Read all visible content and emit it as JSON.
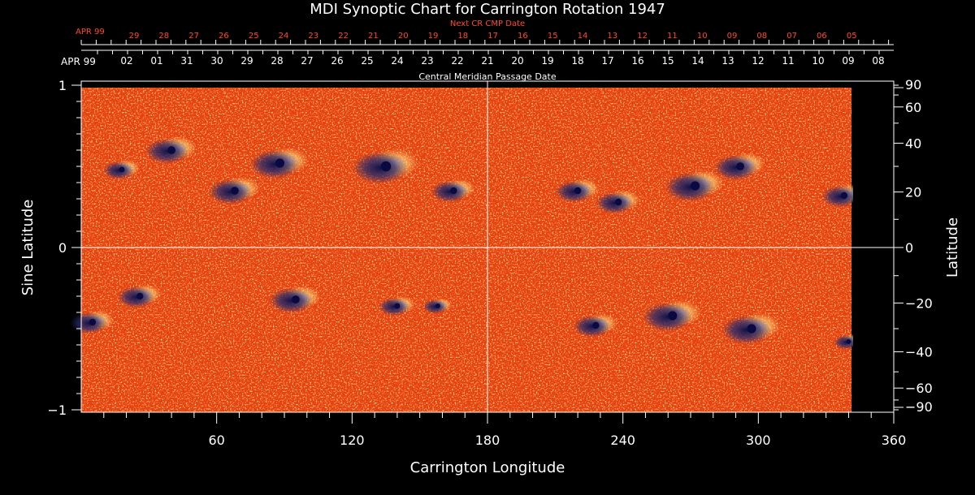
{
  "colors": {
    "background": "#000000",
    "map_base": "#e8400c",
    "map_light": "#ffd060",
    "map_dark": "#1a1a5a",
    "axis": "#ffffff",
    "top_axis": "#ff4a2a"
  },
  "chart_data": {
    "type": "heatmap",
    "title": "MDI Synoptic Chart for Carrington Rotation 1947",
    "xlabel": "Carrington Longitude",
    "ylabel_left": "Sine Latitude",
    "ylabel_right": "Latitude",
    "xlim": [
      0,
      360
    ],
    "ylim": [
      -1,
      1
    ],
    "x_ticks": [
      60,
      120,
      180,
      240,
      300,
      360
    ],
    "y_ticks_left": [
      {
        "value": 1,
        "label": "1"
      },
      {
        "value": 0,
        "label": "0"
      },
      {
        "value": -1,
        "label": "−1"
      }
    ],
    "y_ticks_right": [
      {
        "deg": 90,
        "label": "90"
      },
      {
        "deg": 60,
        "label": "60"
      },
      {
        "deg": 40,
        "label": "40"
      },
      {
        "deg": 20,
        "label": "20"
      },
      {
        "deg": 0,
        "label": "0"
      },
      {
        "deg": -20,
        "label": "−20"
      },
      {
        "deg": -40,
        "label": "−40"
      },
      {
        "deg": -60,
        "label": "−60"
      },
      {
        "deg": -90,
        "label": "−90"
      }
    ],
    "cmp_axis_title": "Central Meridian Passage Date",
    "cmp_month": "APR 99",
    "cmp_dates": [
      "02",
      "01",
      "31",
      "30",
      "29",
      "28",
      "27",
      "26",
      "25",
      "24",
      "23",
      "22",
      "21",
      "20",
      "19",
      "18",
      "17",
      "16",
      "15",
      "14",
      "13",
      "12",
      "11",
      "10",
      "09",
      "08"
    ],
    "next_cmp_axis_title": "Next CR CMP Date",
    "next_cmp_month": "APR 99",
    "next_cmp_dates": [
      "29",
      "28",
      "27",
      "26",
      "25",
      "24",
      "23",
      "22",
      "21",
      "20",
      "19",
      "18",
      "17",
      "16",
      "15",
      "14",
      "13",
      "12",
      "11",
      "10",
      "09",
      "08",
      "07",
      "06",
      "05"
    ],
    "data_extent_longitude": [
      0,
      342
    ],
    "active_regions": [
      {
        "lon": 18,
        "lat": 0.48,
        "r": 10
      },
      {
        "lon": 40,
        "lat": 0.6,
        "r": 14
      },
      {
        "lon": 68,
        "lat": 0.35,
        "r": 14
      },
      {
        "lon": 88,
        "lat": 0.52,
        "r": 16
      },
      {
        "lon": 135,
        "lat": 0.5,
        "r": 18
      },
      {
        "lon": 165,
        "lat": 0.35,
        "r": 12
      },
      {
        "lon": 220,
        "lat": 0.35,
        "r": 12
      },
      {
        "lon": 238,
        "lat": 0.28,
        "r": 12
      },
      {
        "lon": 272,
        "lat": 0.38,
        "r": 16
      },
      {
        "lon": 292,
        "lat": 0.5,
        "r": 14
      },
      {
        "lon": 338,
        "lat": 0.32,
        "r": 12
      },
      {
        "lon": 5,
        "lat": -0.46,
        "r": 12
      },
      {
        "lon": 26,
        "lat": -0.3,
        "r": 12
      },
      {
        "lon": 95,
        "lat": -0.32,
        "r": 14
      },
      {
        "lon": 140,
        "lat": -0.36,
        "r": 10
      },
      {
        "lon": 158,
        "lat": -0.36,
        "r": 8
      },
      {
        "lon": 228,
        "lat": -0.48,
        "r": 12
      },
      {
        "lon": 262,
        "lat": -0.42,
        "r": 16
      },
      {
        "lon": 297,
        "lat": -0.5,
        "r": 16
      },
      {
        "lon": 340,
        "lat": -0.58,
        "r": 8
      }
    ]
  }
}
